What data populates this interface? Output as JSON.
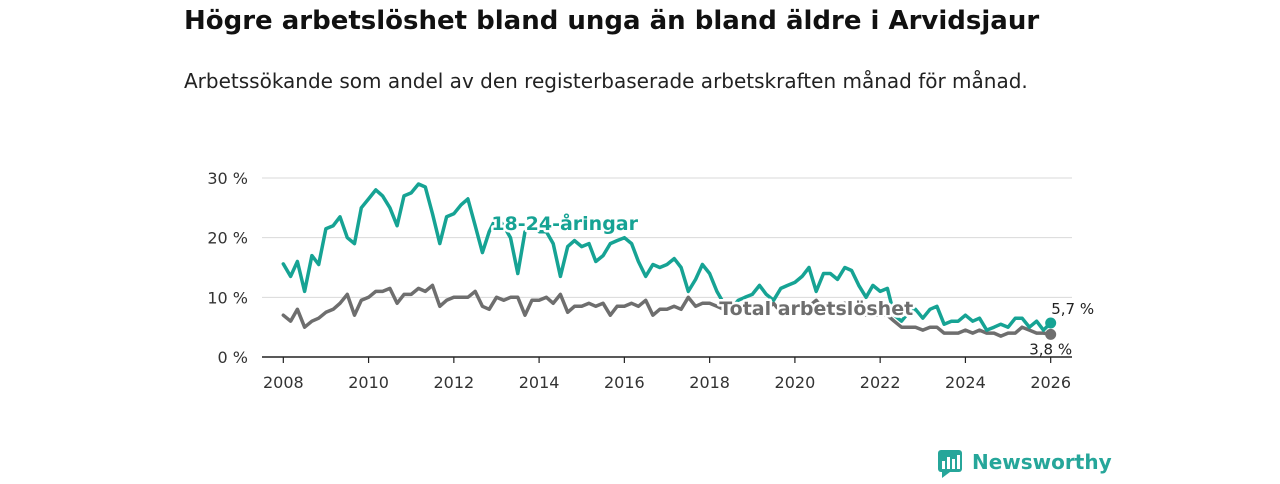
{
  "title": "Högre arbetslöshet bland unga än bland äldre i Arvidsjaur",
  "subtitle": "Arbetssökande som andel av den registerbaserade arbetskraften månad för månad.",
  "brand": {
    "name": "Newsworthy",
    "icon": "newsworthy-logo-icon",
    "color": "#26a69a"
  },
  "chart_data": {
    "type": "line",
    "title": "Högre arbetslöshet bland unga än bland äldre i Arvidsjaur",
    "subtitle": "Arbetssökande som andel av den registerbaserade arbetskraften månad för månad.",
    "xlabel": "",
    "ylabel": "",
    "xlim": [
      2007.5,
      2026.5
    ],
    "ylim": [
      0,
      30
    ],
    "x_ticks": [
      2008,
      2010,
      2012,
      2014,
      2016,
      2018,
      2020,
      2022,
      2024,
      2026
    ],
    "y_ticks": [
      {
        "value": 0,
        "label": "0 %"
      },
      {
        "value": 10,
        "label": "10 %"
      },
      {
        "value": 20,
        "label": "20 %"
      },
      {
        "value": 30,
        "label": "30 %"
      }
    ],
    "grid": true,
    "series": [
      {
        "name": "18-24-åringar",
        "color": "#16a394",
        "end_label": "5,7 %",
        "end_value": 5.7,
        "points": [
          [
            2008.0,
            15.6
          ],
          [
            2008.17,
            13.5
          ],
          [
            2008.33,
            16.0
          ],
          [
            2008.5,
            11.0
          ],
          [
            2008.67,
            17.0
          ],
          [
            2008.83,
            15.5
          ],
          [
            2009.0,
            21.5
          ],
          [
            2009.17,
            22.0
          ],
          [
            2009.33,
            23.5
          ],
          [
            2009.5,
            20.0
          ],
          [
            2009.67,
            19.0
          ],
          [
            2009.83,
            25.0
          ],
          [
            2010.0,
            26.5
          ],
          [
            2010.17,
            28.0
          ],
          [
            2010.33,
            27.0
          ],
          [
            2010.5,
            25.0
          ],
          [
            2010.67,
            22.0
          ],
          [
            2010.83,
            27.0
          ],
          [
            2011.0,
            27.5
          ],
          [
            2011.17,
            29.0
          ],
          [
            2011.33,
            28.5
          ],
          [
            2011.5,
            24.0
          ],
          [
            2011.67,
            19.0
          ],
          [
            2011.83,
            23.5
          ],
          [
            2012.0,
            24.0
          ],
          [
            2012.17,
            25.5
          ],
          [
            2012.33,
            26.5
          ],
          [
            2012.5,
            22.0
          ],
          [
            2012.67,
            17.5
          ],
          [
            2012.83,
            21.0
          ],
          [
            2013.0,
            23.5
          ],
          [
            2013.17,
            22.0
          ],
          [
            2013.33,
            20.0
          ],
          [
            2013.5,
            14.0
          ],
          [
            2013.67,
            21.0
          ],
          [
            2013.83,
            22.0
          ],
          [
            2014.0,
            21.0
          ],
          [
            2014.17,
            21.0
          ],
          [
            2014.33,
            19.0
          ],
          [
            2014.5,
            13.5
          ],
          [
            2014.67,
            18.5
          ],
          [
            2014.83,
            19.5
          ],
          [
            2015.0,
            18.5
          ],
          [
            2015.17,
            19.0
          ],
          [
            2015.33,
            16.0
          ],
          [
            2015.5,
            17.0
          ],
          [
            2015.67,
            19.0
          ],
          [
            2015.83,
            19.5
          ],
          [
            2016.0,
            20.0
          ],
          [
            2016.17,
            19.0
          ],
          [
            2016.33,
            16.0
          ],
          [
            2016.5,
            13.5
          ],
          [
            2016.67,
            15.5
          ],
          [
            2016.83,
            15.0
          ],
          [
            2017.0,
            15.5
          ],
          [
            2017.17,
            16.5
          ],
          [
            2017.33,
            15.0
          ],
          [
            2017.5,
            11.0
          ],
          [
            2017.67,
            13.0
          ],
          [
            2017.83,
            15.5
          ],
          [
            2018.0,
            14.0
          ],
          [
            2018.17,
            11.0
          ],
          [
            2018.33,
            9.0
          ],
          [
            2018.5,
            8.0
          ],
          [
            2018.67,
            9.5
          ],
          [
            2018.83,
            10.0
          ],
          [
            2019.0,
            10.5
          ],
          [
            2019.17,
            12.0
          ],
          [
            2019.33,
            10.5
          ],
          [
            2019.5,
            9.5
          ],
          [
            2019.67,
            11.5
          ],
          [
            2019.83,
            12.0
          ],
          [
            2020.0,
            12.5
          ],
          [
            2020.17,
            13.5
          ],
          [
            2020.33,
            15.0
          ],
          [
            2020.5,
            11.0
          ],
          [
            2020.67,
            14.0
          ],
          [
            2020.83,
            14.0
          ],
          [
            2021.0,
            13.0
          ],
          [
            2021.17,
            15.0
          ],
          [
            2021.33,
            14.5
          ],
          [
            2021.5,
            12.0
          ],
          [
            2021.67,
            10.0
          ],
          [
            2021.83,
            12.0
          ],
          [
            2022.0,
            11.0
          ],
          [
            2022.17,
            11.5
          ],
          [
            2022.33,
            7.0
          ],
          [
            2022.5,
            6.0
          ],
          [
            2022.67,
            7.5
          ],
          [
            2022.83,
            8.0
          ],
          [
            2023.0,
            6.5
          ],
          [
            2023.17,
            8.0
          ],
          [
            2023.33,
            8.5
          ],
          [
            2023.5,
            5.5
          ],
          [
            2023.67,
            6.0
          ],
          [
            2023.83,
            6.0
          ],
          [
            2024.0,
            7.0
          ],
          [
            2024.17,
            6.0
          ],
          [
            2024.33,
            6.5
          ],
          [
            2024.5,
            4.5
          ],
          [
            2024.67,
            5.0
          ],
          [
            2024.83,
            5.5
          ],
          [
            2025.0,
            5.0
          ],
          [
            2025.17,
            6.5
          ],
          [
            2025.33,
            6.5
          ],
          [
            2025.5,
            5.0
          ],
          [
            2025.67,
            6.0
          ],
          [
            2025.83,
            4.5
          ],
          [
            2026.0,
            5.7
          ]
        ]
      },
      {
        "name": "Total arbetslöshet",
        "color": "#6e6e6e",
        "end_label": "3,8 %",
        "end_value": 3.8,
        "points": [
          [
            2008.0,
            7.0
          ],
          [
            2008.17,
            6.0
          ],
          [
            2008.33,
            8.0
          ],
          [
            2008.5,
            5.0
          ],
          [
            2008.67,
            6.0
          ],
          [
            2008.83,
            6.5
          ],
          [
            2009.0,
            7.5
          ],
          [
            2009.17,
            8.0
          ],
          [
            2009.33,
            9.0
          ],
          [
            2009.5,
            10.5
          ],
          [
            2009.67,
            7.0
          ],
          [
            2009.83,
            9.5
          ],
          [
            2010.0,
            10.0
          ],
          [
            2010.17,
            11.0
          ],
          [
            2010.33,
            11.0
          ],
          [
            2010.5,
            11.5
          ],
          [
            2010.67,
            9.0
          ],
          [
            2010.83,
            10.5
          ],
          [
            2011.0,
            10.5
          ],
          [
            2011.17,
            11.5
          ],
          [
            2011.33,
            11.0
          ],
          [
            2011.5,
            12.0
          ],
          [
            2011.67,
            8.5
          ],
          [
            2011.83,
            9.5
          ],
          [
            2012.0,
            10.0
          ],
          [
            2012.17,
            10.0
          ],
          [
            2012.33,
            10.0
          ],
          [
            2012.5,
            11.0
          ],
          [
            2012.67,
            8.5
          ],
          [
            2012.83,
            8.0
          ],
          [
            2013.0,
            10.0
          ],
          [
            2013.17,
            9.5
          ],
          [
            2013.33,
            10.0
          ],
          [
            2013.5,
            10.0
          ],
          [
            2013.67,
            7.0
          ],
          [
            2013.83,
            9.5
          ],
          [
            2014.0,
            9.5
          ],
          [
            2014.17,
            10.0
          ],
          [
            2014.33,
            9.0
          ],
          [
            2014.5,
            10.5
          ],
          [
            2014.67,
            7.5
          ],
          [
            2014.83,
            8.5
          ],
          [
            2015.0,
            8.5
          ],
          [
            2015.17,
            9.0
          ],
          [
            2015.33,
            8.5
          ],
          [
            2015.5,
            9.0
          ],
          [
            2015.67,
            7.0
          ],
          [
            2015.83,
            8.5
          ],
          [
            2016.0,
            8.5
          ],
          [
            2016.17,
            9.0
          ],
          [
            2016.33,
            8.5
          ],
          [
            2016.5,
            9.5
          ],
          [
            2016.67,
            7.0
          ],
          [
            2016.83,
            8.0
          ],
          [
            2017.0,
            8.0
          ],
          [
            2017.17,
            8.5
          ],
          [
            2017.33,
            8.0
          ],
          [
            2017.5,
            10.0
          ],
          [
            2017.67,
            8.5
          ],
          [
            2017.83,
            9.0
          ],
          [
            2018.0,
            9.0
          ],
          [
            2018.17,
            8.5
          ],
          [
            2018.33,
            8.0
          ],
          [
            2018.5,
            9.0
          ],
          [
            2018.67,
            7.5
          ],
          [
            2018.83,
            8.0
          ],
          [
            2019.0,
            8.0
          ],
          [
            2019.17,
            8.5
          ],
          [
            2019.33,
            8.0
          ],
          [
            2019.5,
            9.0
          ],
          [
            2019.67,
            7.5
          ],
          [
            2019.83,
            8.0
          ],
          [
            2020.0,
            8.5
          ],
          [
            2020.17,
            9.0
          ],
          [
            2020.33,
            8.5
          ],
          [
            2020.5,
            9.5
          ],
          [
            2020.67,
            8.0
          ],
          [
            2020.83,
            8.5
          ],
          [
            2021.0,
            8.5
          ],
          [
            2021.17,
            9.0
          ],
          [
            2021.33,
            8.0
          ],
          [
            2021.5,
            9.0
          ],
          [
            2021.67,
            7.0
          ],
          [
            2021.83,
            7.0
          ],
          [
            2022.0,
            7.0
          ],
          [
            2022.17,
            7.0
          ],
          [
            2022.33,
            6.0
          ],
          [
            2022.5,
            5.0
          ],
          [
            2022.67,
            5.0
          ],
          [
            2022.83,
            5.0
          ],
          [
            2023.0,
            4.5
          ],
          [
            2023.17,
            5.0
          ],
          [
            2023.33,
            5.0
          ],
          [
            2023.5,
            4.0
          ],
          [
            2023.67,
            4.0
          ],
          [
            2023.83,
            4.0
          ],
          [
            2024.0,
            4.5
          ],
          [
            2024.17,
            4.0
          ],
          [
            2024.33,
            4.5
          ],
          [
            2024.5,
            4.0
          ],
          [
            2024.67,
            4.0
          ],
          [
            2024.83,
            3.5
          ],
          [
            2025.0,
            4.0
          ],
          [
            2025.17,
            4.0
          ],
          [
            2025.33,
            5.0
          ],
          [
            2025.5,
            4.5
          ],
          [
            2025.67,
            4.0
          ],
          [
            2025.83,
            4.0
          ],
          [
            2026.0,
            3.8
          ]
        ]
      }
    ],
    "annotations": [
      {
        "text": "18-24-åringar",
        "x": 2014.6,
        "y": 21.3,
        "series": "18-24-åringar"
      },
      {
        "text": "Total arbetslöshet",
        "x": 2020.5,
        "y": 7.0,
        "series": "Total arbetslöshet"
      }
    ]
  }
}
